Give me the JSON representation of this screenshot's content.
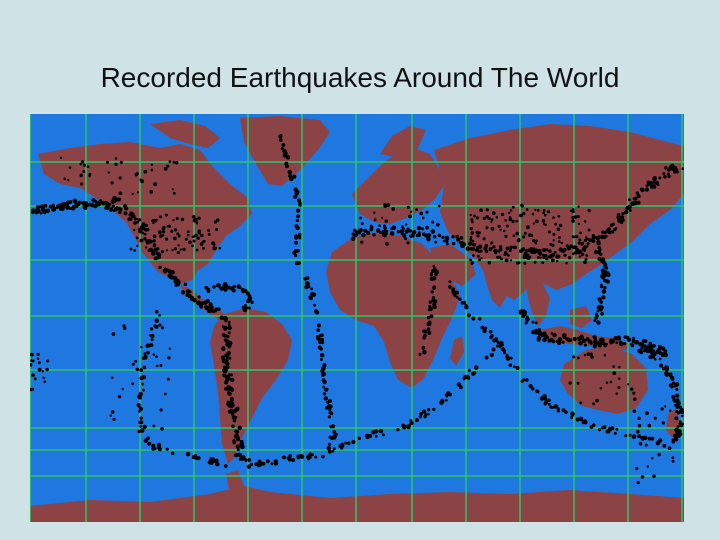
{
  "slide": {
    "title": "Recorded Earthquakes Around The World"
  },
  "map": {
    "colors": {
      "ocean": "#1e78e0",
      "land": "#8b4346",
      "grid": "#2fc46a",
      "quake": "#000000"
    }
  }
}
